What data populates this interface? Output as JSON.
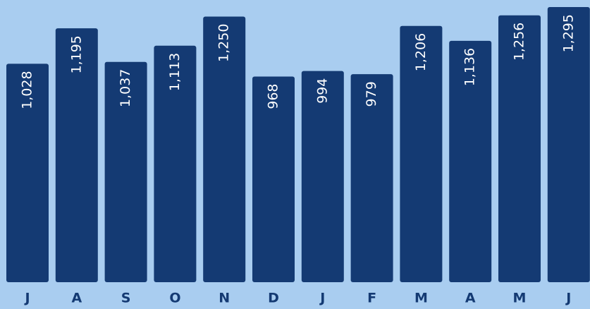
{
  "chart_data": {
    "type": "bar",
    "categories": [
      "J",
      "A",
      "S",
      "O",
      "N",
      "D",
      "J",
      "F",
      "M",
      "A",
      "M",
      "J"
    ],
    "values": [
      1028,
      1195,
      1037,
      1113,
      1250,
      968,
      994,
      979,
      1206,
      1136,
      1256,
      1295
    ],
    "value_labels": [
      "1,028",
      "1,195",
      "1,037",
      "1,113",
      "1,250",
      "968",
      "994",
      "979",
      "1,206",
      "1,136",
      "1,256",
      "1,295"
    ],
    "color": "#143a73"
  }
}
